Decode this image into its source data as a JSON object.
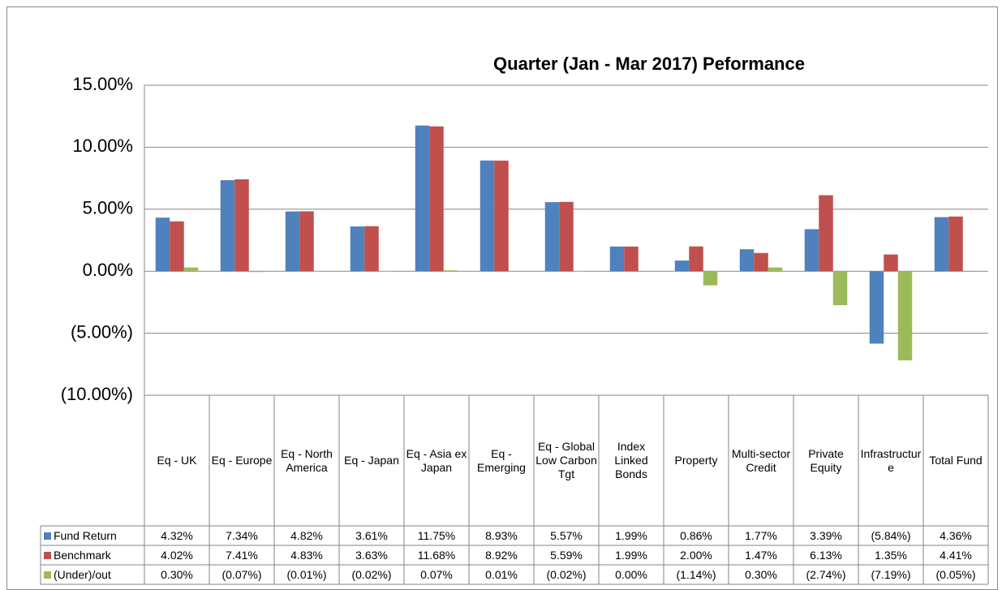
{
  "chart_data": {
    "type": "bar",
    "title": "Quarter (Jan - Mar 2017) Peformance",
    "categories": [
      "Eq - UK",
      "Eq - Europe",
      "Eq - North America",
      "Eq - Japan",
      "Eq - Asia ex Japan",
      "Eq - Emerging",
      "Eq - Global Low Carbon Tgt",
      "Index Linked Bonds",
      "Property",
      "Multi-sector Credit",
      "Private Equity",
      "Infrastructure",
      "Total Fund"
    ],
    "series": [
      {
        "name": "Fund Return",
        "color": "#4f81bd",
        "values": [
          4.32,
          7.34,
          4.82,
          3.61,
          11.75,
          8.93,
          5.57,
          1.99,
          0.86,
          1.77,
          3.39,
          -5.84,
          4.36
        ],
        "value_labels": [
          "4.32%",
          "7.34%",
          "4.82%",
          "3.61%",
          "11.75%",
          "8.93%",
          "5.57%",
          "1.99%",
          "0.86%",
          "1.77%",
          "3.39%",
          "(5.84%)",
          "4.36%"
        ]
      },
      {
        "name": "Benchmark",
        "color": "#c0504d",
        "values": [
          4.02,
          7.41,
          4.83,
          3.63,
          11.68,
          8.92,
          5.59,
          1.99,
          2.0,
          1.47,
          6.13,
          1.35,
          4.41
        ],
        "value_labels": [
          "4.02%",
          "7.41%",
          "4.83%",
          "3.63%",
          "11.68%",
          "8.92%",
          "5.59%",
          "1.99%",
          "2.00%",
          "1.47%",
          "6.13%",
          "1.35%",
          "4.41%"
        ]
      },
      {
        "name": "(Under)/out",
        "color": "#9bbb59",
        "values": [
          0.3,
          -0.07,
          -0.01,
          -0.02,
          0.07,
          0.01,
          -0.02,
          0.0,
          -1.14,
          0.3,
          -2.74,
          -7.19,
          -0.05
        ],
        "value_labels": [
          "0.30%",
          "(0.07%)",
          "(0.01%)",
          "(0.02%)",
          "0.07%",
          "0.01%",
          "(0.02%)",
          "0.00%",
          "(1.14%)",
          "0.30%",
          "(2.74%)",
          "(7.19%)",
          "(0.05%)"
        ]
      }
    ],
    "ylim": [
      -10,
      15
    ],
    "yticks": [
      {
        "value": -10,
        "label": "(10.00%)"
      },
      {
        "value": -5,
        "label": "(5.00%)"
      },
      {
        "value": 0,
        "label": "0.00%"
      },
      {
        "value": 5,
        "label": "5.00%"
      },
      {
        "value": 10,
        "label": "10.00%"
      },
      {
        "value": 15,
        "label": "15.00%"
      }
    ],
    "grid": true,
    "data_table": true
  }
}
